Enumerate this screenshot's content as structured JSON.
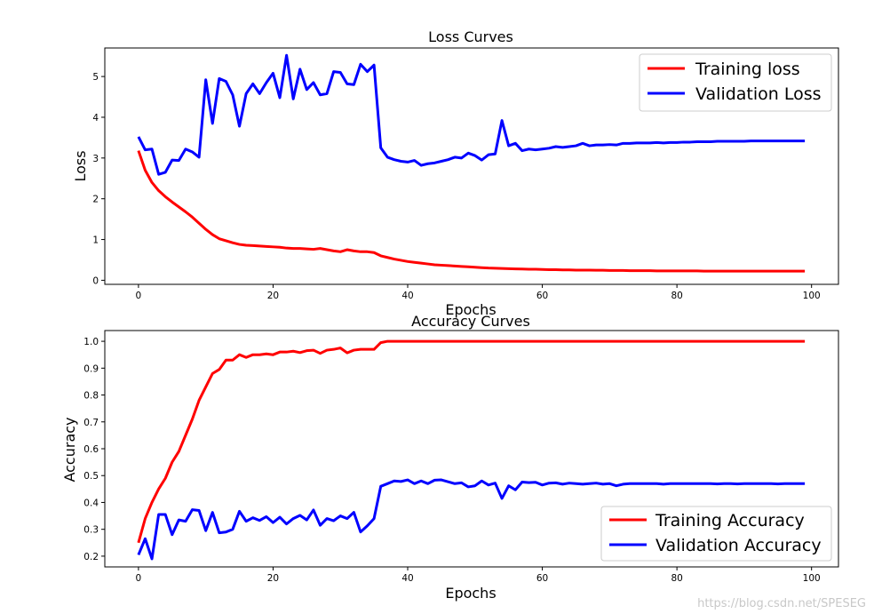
{
  "chart_data": [
    {
      "type": "line",
      "title": "Loss Curves",
      "xlabel": "Epochs",
      "ylabel": "Loss",
      "xlim": [
        -5,
        104
      ],
      "ylim": [
        -0.1,
        5.7
      ],
      "xticks": [
        0,
        20,
        40,
        60,
        80,
        100
      ],
      "yticks": [
        0,
        1,
        2,
        3,
        4,
        5
      ],
      "legend_position": "upper-right",
      "grid": false,
      "series": [
        {
          "name": "Training loss",
          "color": "#ff0000",
          "x": [
            0,
            1,
            2,
            3,
            4,
            5,
            6,
            7,
            8,
            9,
            10,
            11,
            12,
            13,
            14,
            15,
            16,
            17,
            18,
            19,
            20,
            21,
            22,
            23,
            24,
            25,
            26,
            27,
            28,
            29,
            30,
            31,
            32,
            33,
            34,
            35,
            36,
            37,
            38,
            39,
            40,
            41,
            42,
            43,
            44,
            45,
            46,
            47,
            48,
            49,
            50,
            51,
            52,
            53,
            54,
            55,
            56,
            57,
            58,
            59,
            60,
            61,
            62,
            63,
            64,
            65,
            66,
            67,
            68,
            69,
            70,
            71,
            72,
            73,
            74,
            75,
            76,
            77,
            78,
            79,
            80,
            81,
            82,
            83,
            84,
            85,
            86,
            87,
            88,
            89,
            90,
            91,
            92,
            93,
            94,
            95,
            96,
            97,
            98,
            99
          ],
          "values": [
            3.18,
            2.7,
            2.4,
            2.2,
            2.05,
            1.92,
            1.8,
            1.68,
            1.55,
            1.4,
            1.25,
            1.12,
            1.02,
            0.97,
            0.92,
            0.88,
            0.86,
            0.85,
            0.84,
            0.83,
            0.82,
            0.81,
            0.79,
            0.78,
            0.78,
            0.77,
            0.76,
            0.78,
            0.75,
            0.72,
            0.7,
            0.75,
            0.72,
            0.7,
            0.7,
            0.68,
            0.6,
            0.56,
            0.52,
            0.49,
            0.46,
            0.44,
            0.42,
            0.4,
            0.38,
            0.37,
            0.36,
            0.35,
            0.34,
            0.33,
            0.32,
            0.31,
            0.3,
            0.295,
            0.29,
            0.285,
            0.28,
            0.275,
            0.27,
            0.27,
            0.265,
            0.26,
            0.26,
            0.255,
            0.255,
            0.25,
            0.25,
            0.25,
            0.245,
            0.245,
            0.24,
            0.24,
            0.24,
            0.235,
            0.235,
            0.235,
            0.235,
            0.23,
            0.23,
            0.23,
            0.23,
            0.23,
            0.23,
            0.23,
            0.225,
            0.225,
            0.225,
            0.225,
            0.225,
            0.225,
            0.225,
            0.225,
            0.225,
            0.225,
            0.225,
            0.225,
            0.225,
            0.225,
            0.225,
            0.225
          ]
        },
        {
          "name": "Validation Loss",
          "color": "#0000ff",
          "x": [
            0,
            1,
            2,
            3,
            4,
            5,
            6,
            7,
            8,
            9,
            10,
            11,
            12,
            13,
            14,
            15,
            16,
            17,
            18,
            19,
            20,
            21,
            22,
            23,
            24,
            25,
            26,
            27,
            28,
            29,
            30,
            31,
            32,
            33,
            34,
            35,
            36,
            37,
            38,
            39,
            40,
            41,
            42,
            43,
            44,
            45,
            46,
            47,
            48,
            49,
            50,
            51,
            52,
            53,
            54,
            55,
            56,
            57,
            58,
            59,
            60,
            61,
            62,
            63,
            64,
            65,
            66,
            67,
            68,
            69,
            70,
            71,
            72,
            73,
            74,
            75,
            76,
            77,
            78,
            79,
            80,
            81,
            82,
            83,
            84,
            85,
            86,
            87,
            88,
            89,
            90,
            91,
            92,
            93,
            94,
            95,
            96,
            97,
            98,
            99
          ],
          "values": [
            3.52,
            3.2,
            3.22,
            2.6,
            2.65,
            2.95,
            2.94,
            3.22,
            3.15,
            3.02,
            4.92,
            3.85,
            4.95,
            4.88,
            4.55,
            3.78,
            4.58,
            4.82,
            4.58,
            4.85,
            5.08,
            4.48,
            5.52,
            4.45,
            5.18,
            4.68,
            4.85,
            4.55,
            4.58,
            5.12,
            5.1,
            4.82,
            4.8,
            5.3,
            5.12,
            5.28,
            3.25,
            3.02,
            2.96,
            2.92,
            2.9,
            2.94,
            2.82,
            2.86,
            2.88,
            2.92,
            2.96,
            3.02,
            3.0,
            3.12,
            3.06,
            2.95,
            3.08,
            3.1,
            3.92,
            3.3,
            3.36,
            3.18,
            3.22,
            3.2,
            3.22,
            3.24,
            3.28,
            3.26,
            3.28,
            3.3,
            3.36,
            3.3,
            3.32,
            3.32,
            3.33,
            3.32,
            3.36,
            3.36,
            3.37,
            3.37,
            3.37,
            3.38,
            3.37,
            3.38,
            3.38,
            3.39,
            3.39,
            3.4,
            3.4,
            3.4,
            3.41,
            3.41,
            3.41,
            3.41,
            3.41,
            3.42,
            3.42,
            3.42,
            3.42,
            3.42,
            3.42,
            3.42,
            3.42,
            3.42
          ]
        }
      ]
    },
    {
      "type": "line",
      "title": "Accuracy Curves",
      "xlabel": "Epochs",
      "ylabel": "Accuracy",
      "xlim": [
        -5,
        104
      ],
      "ylim": [
        0.16,
        1.04
      ],
      "xticks": [
        0,
        20,
        40,
        60,
        80,
        100
      ],
      "yticks": [
        0.2,
        0.3,
        0.4,
        0.5,
        0.6,
        0.7,
        0.8,
        0.9,
        1.0
      ],
      "legend_position": "lower-right",
      "grid": false,
      "series": [
        {
          "name": "Training Accuracy",
          "color": "#ff0000",
          "x": [
            0,
            1,
            2,
            3,
            4,
            5,
            6,
            7,
            8,
            9,
            10,
            11,
            12,
            13,
            14,
            15,
            16,
            17,
            18,
            19,
            20,
            21,
            22,
            23,
            24,
            25,
            26,
            27,
            28,
            29,
            30,
            31,
            32,
            33,
            34,
            35,
            36,
            37,
            38,
            39,
            40,
            41,
            42,
            43,
            44,
            45,
            46,
            47,
            48,
            49,
            50,
            51,
            52,
            53,
            54,
            55,
            56,
            57,
            58,
            59,
            60,
            61,
            62,
            63,
            64,
            65,
            66,
            67,
            68,
            69,
            70,
            71,
            72,
            73,
            74,
            75,
            76,
            77,
            78,
            79,
            80,
            81,
            82,
            83,
            84,
            85,
            86,
            87,
            88,
            89,
            90,
            91,
            92,
            93,
            94,
            95,
            96,
            97,
            98,
            99
          ],
          "values": [
            0.25,
            0.34,
            0.4,
            0.45,
            0.49,
            0.55,
            0.59,
            0.65,
            0.71,
            0.78,
            0.83,
            0.88,
            0.895,
            0.93,
            0.93,
            0.95,
            0.94,
            0.95,
            0.95,
            0.953,
            0.95,
            0.96,
            0.96,
            0.963,
            0.958,
            0.965,
            0.967,
            0.955,
            0.967,
            0.97,
            0.975,
            0.957,
            0.967,
            0.97,
            0.97,
            0.97,
            0.995,
            1.0,
            1.0,
            1.0,
            1.0,
            1.0,
            1.0,
            1.0,
            1.0,
            1.0,
            1.0,
            1.0,
            1.0,
            1.0,
            1.0,
            1.0,
            1.0,
            1.0,
            1.0,
            1.0,
            1.0,
            1.0,
            1.0,
            1.0,
            1.0,
            1.0,
            1.0,
            1.0,
            1.0,
            1.0,
            1.0,
            1.0,
            1.0,
            1.0,
            1.0,
            1.0,
            1.0,
            1.0,
            1.0,
            1.0,
            1.0,
            1.0,
            1.0,
            1.0,
            1.0,
            1.0,
            1.0,
            1.0,
            1.0,
            1.0,
            1.0,
            1.0,
            1.0,
            1.0,
            1.0,
            1.0,
            1.0,
            1.0,
            1.0,
            1.0,
            1.0,
            1.0,
            1.0,
            1.0
          ]
        },
        {
          "name": "Validation Accuracy",
          "color": "#0000ff",
          "x": [
            0,
            1,
            2,
            3,
            4,
            5,
            6,
            7,
            8,
            9,
            10,
            11,
            12,
            13,
            14,
            15,
            16,
            17,
            18,
            19,
            20,
            21,
            22,
            23,
            24,
            25,
            26,
            27,
            28,
            29,
            30,
            31,
            32,
            33,
            34,
            35,
            36,
            37,
            38,
            39,
            40,
            41,
            42,
            43,
            44,
            45,
            46,
            47,
            48,
            49,
            50,
            51,
            52,
            53,
            54,
            55,
            56,
            57,
            58,
            59,
            60,
            61,
            62,
            63,
            64,
            65,
            66,
            67,
            68,
            69,
            70,
            71,
            72,
            73,
            74,
            75,
            76,
            77,
            78,
            79,
            80,
            81,
            82,
            83,
            84,
            85,
            86,
            87,
            88,
            89,
            90,
            91,
            92,
            93,
            94,
            95,
            96,
            97,
            98,
            99
          ],
          "values": [
            0.205,
            0.265,
            0.19,
            0.355,
            0.355,
            0.28,
            0.335,
            0.33,
            0.373,
            0.37,
            0.295,
            0.363,
            0.287,
            0.29,
            0.3,
            0.367,
            0.33,
            0.343,
            0.333,
            0.347,
            0.325,
            0.345,
            0.32,
            0.34,
            0.352,
            0.335,
            0.372,
            0.315,
            0.34,
            0.332,
            0.35,
            0.34,
            0.363,
            0.29,
            0.313,
            0.34,
            0.46,
            0.47,
            0.48,
            0.478,
            0.484,
            0.47,
            0.48,
            0.47,
            0.483,
            0.484,
            0.477,
            0.47,
            0.473,
            0.458,
            0.462,
            0.48,
            0.465,
            0.472,
            0.415,
            0.462,
            0.447,
            0.476,
            0.474,
            0.475,
            0.465,
            0.472,
            0.473,
            0.468,
            0.472,
            0.47,
            0.468,
            0.47,
            0.472,
            0.468,
            0.47,
            0.462,
            0.468,
            0.47,
            0.47,
            0.47,
            0.47,
            0.47,
            0.468,
            0.47,
            0.47,
            0.47,
            0.47,
            0.47,
            0.47,
            0.47,
            0.469,
            0.47,
            0.47,
            0.469,
            0.47,
            0.47,
            0.47,
            0.47,
            0.47,
            0.469,
            0.47,
            0.47,
            0.47,
            0.47
          ]
        }
      ]
    }
  ],
  "watermark": "https://blog.csdn.net/SPESEG"
}
